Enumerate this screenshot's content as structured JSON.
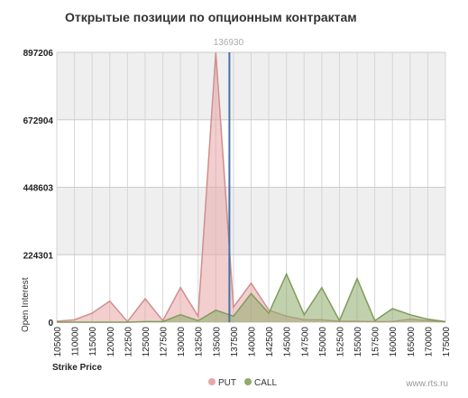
{
  "chart_data": {
    "type": "area",
    "title": "Открытые позиции по опционным контрактам",
    "xlabel": "Strike Price",
    "ylabel": "Open Interest",
    "categories": [
      "105000",
      "110000",
      "115000",
      "120000",
      "122500",
      "125000",
      "127500",
      "130000",
      "132500",
      "135000",
      "137500",
      "140000",
      "142500",
      "145000",
      "147500",
      "150000",
      "152500",
      "155000",
      "157500",
      "160000",
      "165000",
      "170000",
      "175000"
    ],
    "y_ticks": [
      "0",
      "224301",
      "448603",
      "672904",
      "897206"
    ],
    "ylim": [
      0,
      897206
    ],
    "series": [
      {
        "name": "PUT",
        "color": "#e8a6a6",
        "values": [
          3000,
          8000,
          30000,
          70000,
          2000,
          78000,
          5000,
          115000,
          20000,
          897206,
          50000,
          130000,
          40000,
          20000,
          8000,
          8000,
          3000,
          3000,
          2000,
          2000,
          10000,
          5000,
          1000
        ]
      },
      {
        "name": "CALL",
        "color": "#8eab6a",
        "values": [
          0,
          0,
          0,
          0,
          0,
          2000,
          2000,
          25000,
          5000,
          40000,
          20000,
          95000,
          30000,
          160000,
          25000,
          115000,
          5000,
          145000,
          5000,
          45000,
          25000,
          10000,
          2000
        ]
      }
    ],
    "marker": {
      "label": "136930",
      "position_between": [
        "135000",
        "137500"
      ]
    },
    "grid": true,
    "legend_position": "bottom"
  },
  "credit": "www.rts.ru",
  "legend": {
    "put_label": "PUT",
    "call_label": "CALL"
  }
}
